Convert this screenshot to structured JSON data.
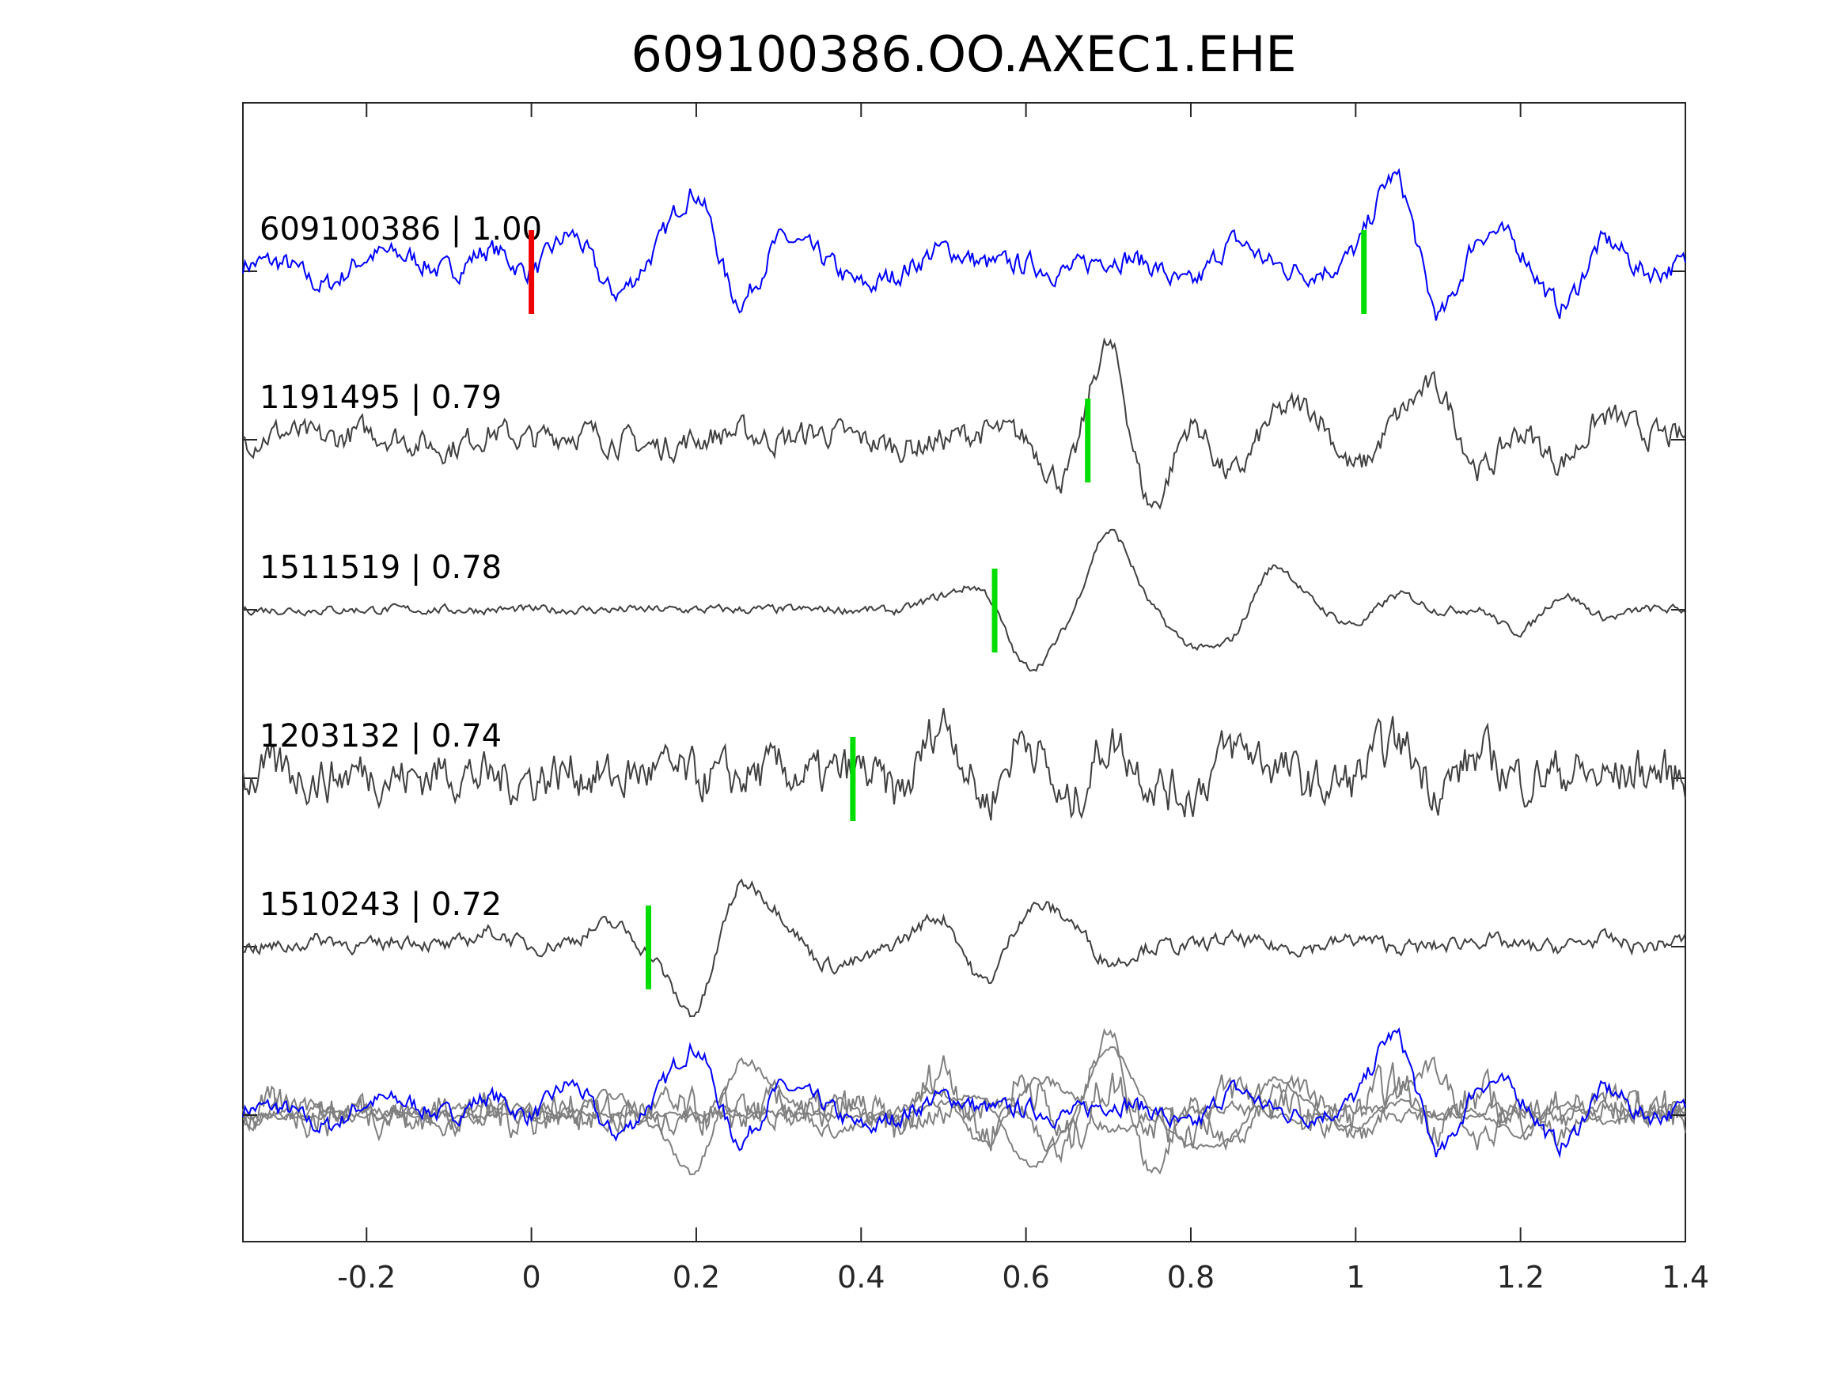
{
  "chart_data": {
    "type": "line",
    "title": "609100386.OO.AXEC1.EHE",
    "xlabel": "",
    "ylabel": "",
    "xlim": [
      -0.35,
      1.4
    ],
    "xticks": [
      -0.2,
      0,
      0.2,
      0.4,
      0.6,
      0.8,
      1,
      1.2,
      1.4
    ],
    "xtick_labels": [
      "-0.2",
      "0",
      "0.2",
      "0.4",
      "0.6",
      "0.8",
      "1",
      "1.2",
      "1.4"
    ],
    "grid": false,
    "sample_x_start": -0.35,
    "sample_x_step": 0.05,
    "colors": {
      "reference": "#0000ff",
      "trace": "#404040",
      "stack": "#808080",
      "pick_reference": "#ee0000",
      "pick": "#00dd00"
    },
    "series": [
      {
        "name": "609100386 | 1.00",
        "reference": true,
        "noise": 0.18,
        "picks": [
          {
            "x": 0,
            "kind": "reference"
          },
          {
            "x": 1.01,
            "kind": "pick"
          }
        ],
        "values": [
          0.1,
          0.1,
          -0.2,
          0.2,
          0.2,
          0.0,
          0.3,
          0.0,
          0.5,
          -0.3,
          0.3,
          1.1,
          -0.4,
          0.4,
          0.2,
          -0.2,
          0.0,
          0.3,
          0.1,
          0.1,
          0.0,
          0.2,
          0.1,
          -0.2,
          0.4,
          0.1,
          0.0,
          0.3,
          1.3,
          -0.6,
          0.5,
          0.3,
          -0.5,
          0.4,
          0.0,
          0.1
        ]
      },
      {
        "name": "1191495 | 0.79",
        "reference": false,
        "noise": 0.22,
        "picks": [
          {
            "x": 0.675,
            "kind": "pick"
          }
        ],
        "values": [
          0.0,
          0.1,
          0.0,
          0.1,
          0.0,
          -0.1,
          0.1,
          0.0,
          0.1,
          0.0,
          -0.1,
          0.0,
          0.1,
          0.0,
          0.1,
          0.0,
          -0.1,
          0.0,
          0.1,
          0.0,
          -0.5,
          1.3,
          -0.9,
          0.2,
          -0.5,
          0.3,
          0.4,
          -0.4,
          0.3,
          0.7,
          -0.4,
          0.1,
          -0.3,
          0.3,
          0.1,
          0.0
        ]
      },
      {
        "name": "1511519 | 0.78",
        "reference": false,
        "noise": 0.07,
        "picks": [
          {
            "x": 0.562,
            "kind": "pick"
          }
        ],
        "values": [
          0.0,
          0.0,
          0.0,
          0.0,
          0.0,
          0.0,
          0.0,
          0.0,
          0.0,
          0.0,
          0.0,
          0.0,
          0.0,
          0.0,
          0.0,
          0.0,
          0.0,
          0.2,
          0.25,
          -0.8,
          -0.2,
          1.1,
          0.1,
          -0.5,
          -0.4,
          0.6,
          0.1,
          -0.2,
          0.2,
          0.0,
          0.0,
          -0.3,
          0.2,
          -0.1,
          0.0,
          0.0
        ]
      },
      {
        "name": "1203132 | 0.74",
        "reference": false,
        "noise": 0.38,
        "picks": [
          {
            "x": 0.39,
            "kind": "pick"
          }
        ],
        "values": [
          0.0,
          0.1,
          0.0,
          0.1,
          0.0,
          0.1,
          0.0,
          0.0,
          0.1,
          0.0,
          0.1,
          0.0,
          0.0,
          0.1,
          0.0,
          0.1,
          -0.2,
          0.8,
          -0.3,
          0.6,
          -0.4,
          0.5,
          0.0,
          -0.2,
          0.4,
          0.2,
          -0.1,
          0.0,
          0.5,
          -0.1,
          0.3,
          0.0,
          0.1,
          0.0,
          0.1,
          0.0
        ]
      },
      {
        "name": "1510243 | 0.72",
        "reference": false,
        "noise": 0.12,
        "picks": [
          {
            "x": 0.142,
            "kind": "pick"
          }
        ],
        "values": [
          0.0,
          0.0,
          0.1,
          0.0,
          0.1,
          0.0,
          0.2,
          0.0,
          0.1,
          0.3,
          -0.2,
          -0.9,
          0.8,
          0.5,
          -0.2,
          -0.2,
          0.1,
          0.4,
          -0.5,
          0.5,
          0.4,
          -0.2,
          0.0,
          0.0,
          0.1,
          0.0,
          0.0,
          0.1,
          0.0,
          0.0,
          0.1,
          0.0,
          0.0,
          0.1,
          0.0,
          0.1
        ]
      }
    ],
    "stack": {
      "name": "overlay",
      "includes_all_series": true
    }
  }
}
